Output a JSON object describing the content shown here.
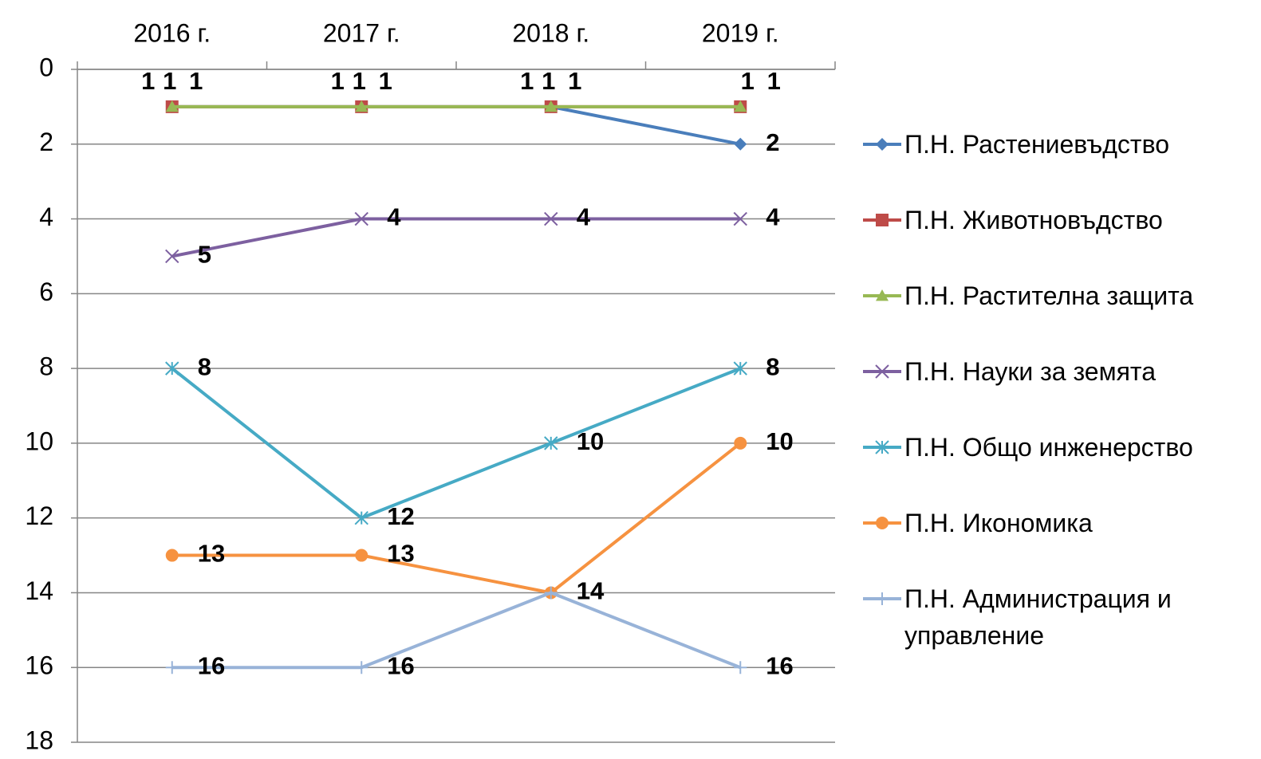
{
  "chart_data": {
    "type": "line",
    "categories": [
      "2016 г.",
      "2017 г.",
      "2018 г.",
      "2019 г."
    ],
    "ylim": [
      0,
      18
    ],
    "yticks": [
      0,
      2,
      4,
      6,
      8,
      10,
      12,
      14,
      16,
      18
    ],
    "y_inverted": true,
    "grid": true,
    "legend": "right",
    "series": [
      {
        "name": "П.Н. Растениевъдство",
        "color": "#4a7ebb",
        "marker": "diamond",
        "label_color": "#558ed5",
        "values": [
          1,
          1,
          1,
          2
        ]
      },
      {
        "name": "П.Н. Животновъдство",
        "color": "#be4b48",
        "marker": "square",
        "label_color": "#c00000",
        "values": [
          1,
          1,
          1,
          1
        ]
      },
      {
        "name": "П.Н. Растителна защита",
        "color": "#98b954",
        "marker": "triangle",
        "label_color": "#00b050",
        "values": [
          1,
          1,
          1,
          1
        ]
      },
      {
        "name": "П.Н. Науки за земята",
        "color": "#7d60a0",
        "marker": "x",
        "label_color": "#7030a0",
        "values": [
          5,
          4,
          4,
          4
        ]
      },
      {
        "name": "П.Н. Общо инженерство",
        "color": "#46aac5",
        "marker": "star",
        "label_color": "#31859c",
        "values": [
          8,
          12,
          10,
          8
        ]
      },
      {
        "name": "П.Н. Икономика",
        "color": "#f69240",
        "marker": "circle",
        "label_color": "#e46c0a",
        "values": [
          13,
          13,
          14,
          10
        ]
      },
      {
        "name": "П.Н. Администрация и управление",
        "color": "#98b3d8",
        "marker": "plus",
        "label_color": "#00b0f0",
        "values": [
          16,
          16,
          14,
          16
        ]
      }
    ]
  }
}
